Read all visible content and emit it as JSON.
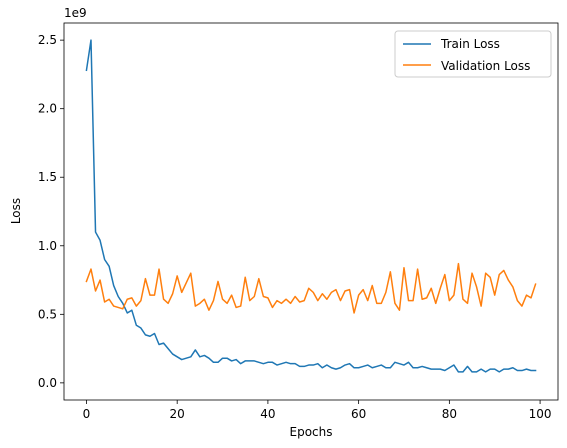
{
  "chart_data": {
    "type": "line",
    "title": "",
    "xlabel": "Epochs",
    "ylabel": "Loss",
    "y_offset_label": "1e9",
    "xlim": [
      -4.95,
      103.95
    ],
    "ylim": [
      -0.125,
      2.625
    ],
    "xticks": [
      0,
      20,
      40,
      60,
      80,
      100
    ],
    "yticks": [
      0.0,
      0.5,
      1.0,
      1.5,
      2.0,
      2.5
    ],
    "ytick_labels": [
      "0.0",
      "0.5",
      "1.0",
      "1.5",
      "2.0",
      "2.5"
    ],
    "grid": false,
    "legend_position": "upper right",
    "series": [
      {
        "name": "Train Loss",
        "color": "#1f77b4",
        "values": [
          2.28,
          2.5,
          1.1,
          1.04,
          0.9,
          0.85,
          0.71,
          0.63,
          0.58,
          0.51,
          0.53,
          0.42,
          0.4,
          0.35,
          0.34,
          0.36,
          0.28,
          0.29,
          0.25,
          0.21,
          0.19,
          0.17,
          0.18,
          0.19,
          0.24,
          0.19,
          0.2,
          0.18,
          0.15,
          0.15,
          0.18,
          0.18,
          0.16,
          0.17,
          0.14,
          0.16,
          0.16,
          0.16,
          0.15,
          0.14,
          0.15,
          0.15,
          0.13,
          0.14,
          0.15,
          0.14,
          0.14,
          0.12,
          0.12,
          0.13,
          0.13,
          0.14,
          0.11,
          0.13,
          0.11,
          0.1,
          0.11,
          0.13,
          0.14,
          0.11,
          0.11,
          0.12,
          0.13,
          0.11,
          0.12,
          0.13,
          0.11,
          0.11,
          0.15,
          0.14,
          0.13,
          0.15,
          0.11,
          0.11,
          0.12,
          0.11,
          0.1,
          0.1,
          0.1,
          0.09,
          0.11,
          0.13,
          0.08,
          0.08,
          0.12,
          0.08,
          0.08,
          0.1,
          0.08,
          0.1,
          0.1,
          0.08,
          0.1,
          0.1,
          0.11,
          0.09,
          0.09,
          0.1,
          0.09,
          0.09
        ]
      },
      {
        "name": "Validation Loss",
        "color": "#ff7f0e",
        "values": [
          0.74,
          0.83,
          0.67,
          0.75,
          0.59,
          0.61,
          0.56,
          0.55,
          0.54,
          0.61,
          0.62,
          0.56,
          0.6,
          0.76,
          0.64,
          0.64,
          0.83,
          0.61,
          0.58,
          0.65,
          0.78,
          0.66,
          0.73,
          0.8,
          0.56,
          0.58,
          0.61,
          0.53,
          0.6,
          0.74,
          0.61,
          0.58,
          0.64,
          0.55,
          0.56,
          0.77,
          0.6,
          0.63,
          0.76,
          0.63,
          0.62,
          0.55,
          0.6,
          0.58,
          0.61,
          0.58,
          0.63,
          0.59,
          0.6,
          0.69,
          0.66,
          0.6,
          0.65,
          0.61,
          0.66,
          0.68,
          0.6,
          0.67,
          0.68,
          0.51,
          0.64,
          0.68,
          0.6,
          0.71,
          0.58,
          0.58,
          0.66,
          0.81,
          0.58,
          0.53,
          0.84,
          0.6,
          0.6,
          0.83,
          0.61,
          0.62,
          0.69,
          0.58,
          0.69,
          0.79,
          0.6,
          0.64,
          0.87,
          0.61,
          0.58,
          0.8,
          0.7,
          0.56,
          0.8,
          0.77,
          0.64,
          0.79,
          0.82,
          0.75,
          0.7,
          0.6,
          0.56,
          0.64,
          0.62,
          0.72
        ]
      }
    ]
  }
}
